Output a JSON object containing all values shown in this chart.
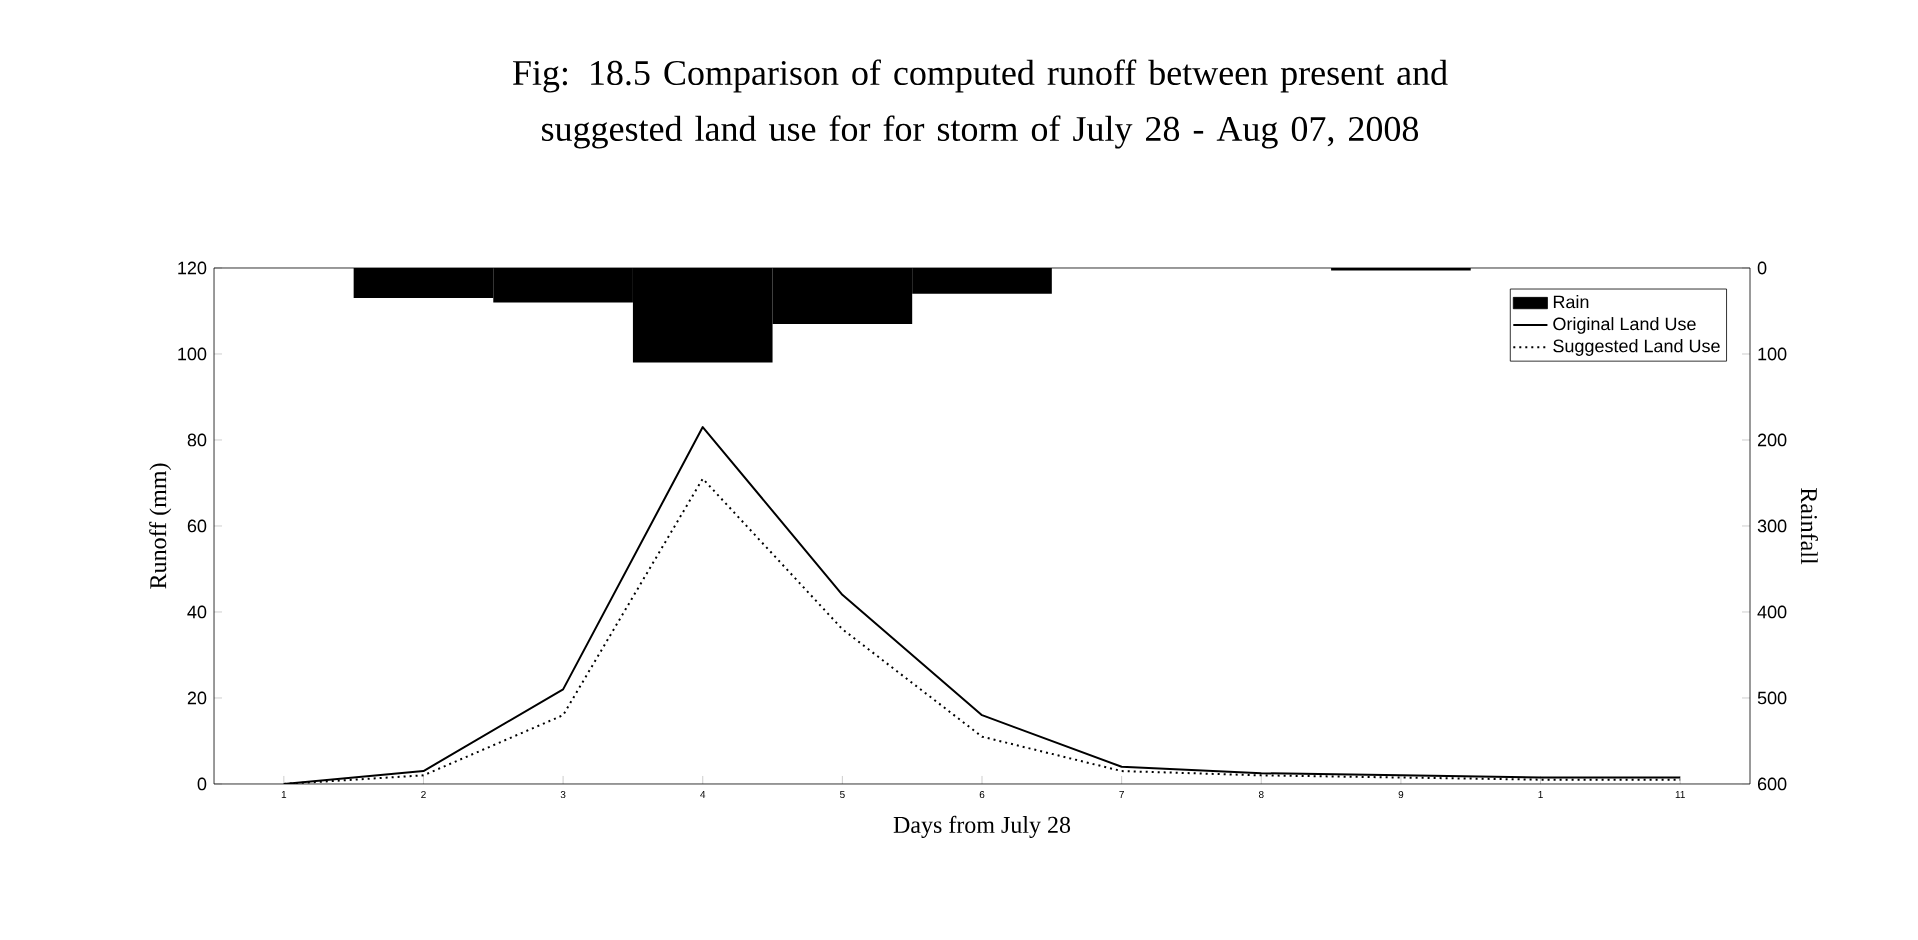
{
  "chart_data": {
    "type": "line",
    "title": "Fig: 18.5  Comparison of computed runoff between present and suggested land use for  for storm of July 28 - Aug 07, 2008",
    "xlabel": "Days from July 28",
    "ylabel": "Runoff (mm)",
    "y2label": "Rainfall",
    "categories": [
      "1",
      "2",
      "3",
      "4",
      "5",
      "6",
      "7",
      "8",
      "9",
      "1",
      "11"
    ],
    "series": [
      {
        "name": "Rain",
        "type": "bar",
        "axis": "y2",
        "color": "#000000",
        "values": [
          0,
          35,
          40,
          110,
          65,
          30,
          0,
          0,
          3,
          0,
          0
        ]
      },
      {
        "name": "Original Land Use",
        "color": "#000000",
        "line_style": "solid",
        "values": [
          0,
          3,
          22,
          83,
          44,
          16,
          4,
          2.5,
          2,
          1.5,
          1.5
        ]
      },
      {
        "name": "Suggested Land Use",
        "color": "#000000",
        "line_style": "dotted",
        "values": [
          0,
          2,
          16,
          71,
          36,
          11,
          3,
          2,
          1.5,
          1,
          1
        ]
      }
    ],
    "ylim": [
      0,
      120
    ],
    "yticks": [
      0,
      20,
      40,
      60,
      80,
      100,
      120
    ],
    "y2lim": [
      600,
      0
    ],
    "y2ticks": [
      0,
      100,
      200,
      300,
      400,
      500,
      600
    ],
    "legend": "top right"
  }
}
